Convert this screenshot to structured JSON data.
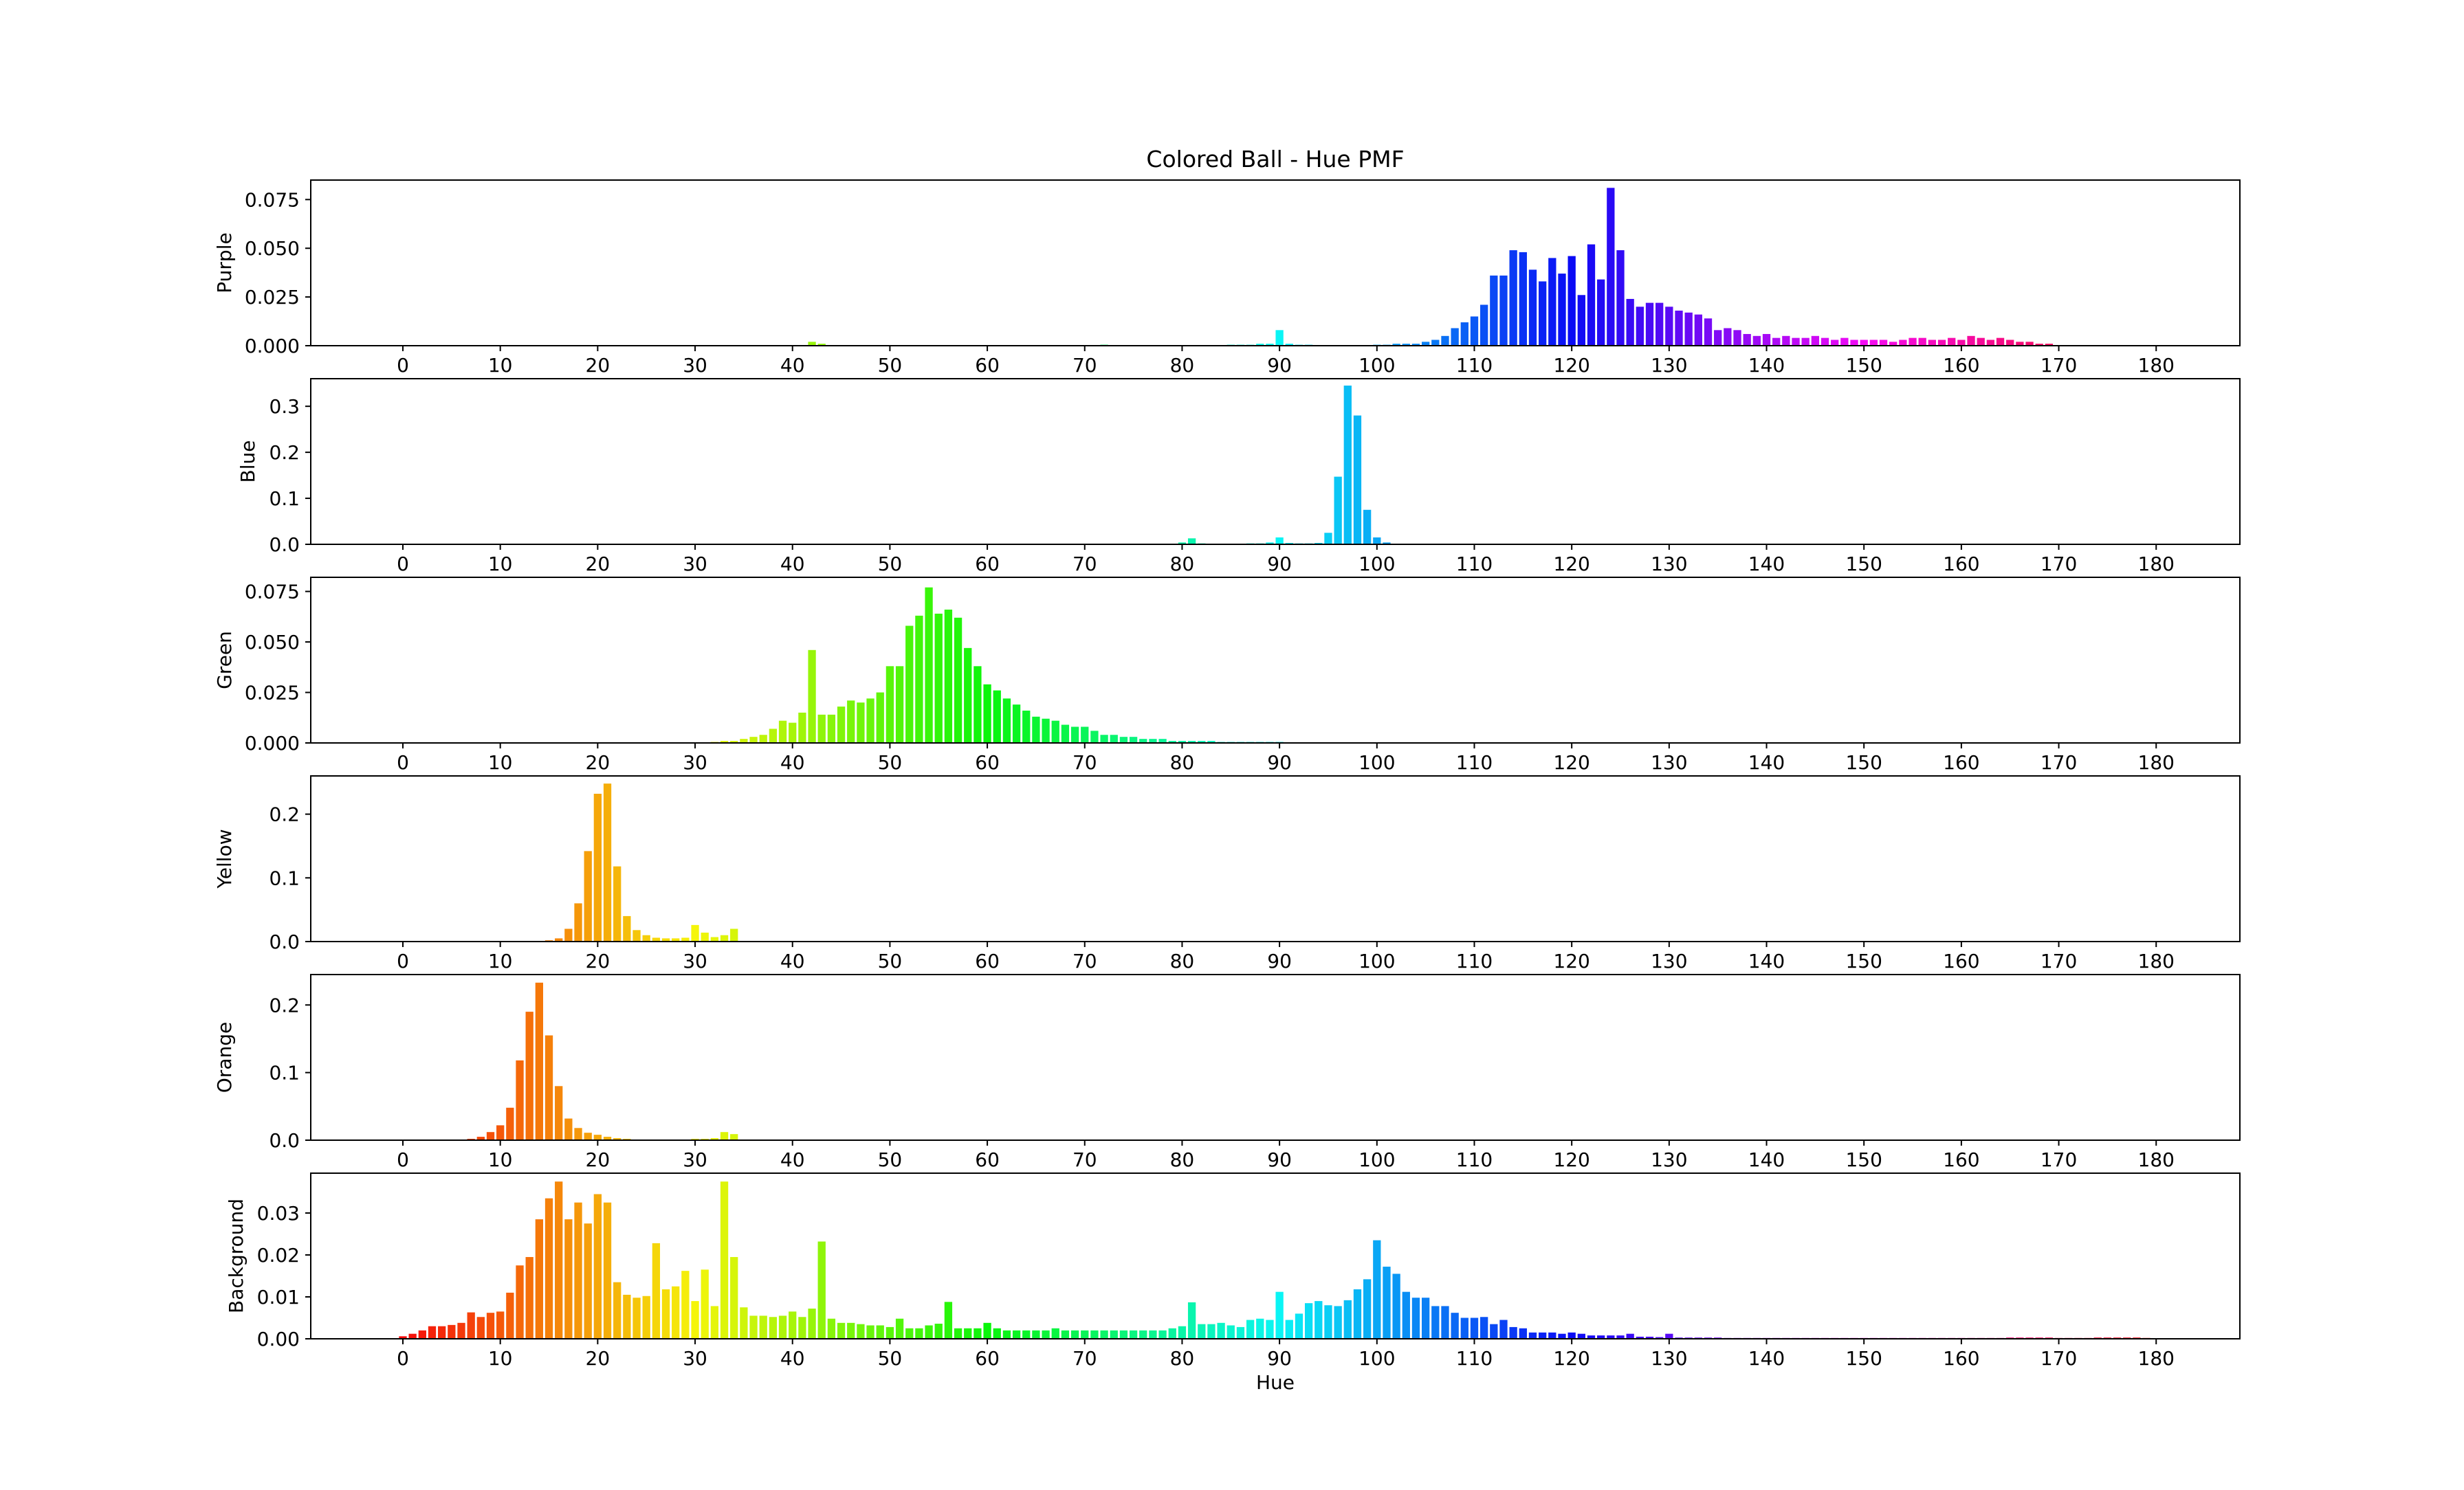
{
  "title": "Colored Ball - Hue PMF",
  "xlabel": "Hue",
  "x_ticks": [
    "0",
    "10",
    "20",
    "30",
    "40",
    "50",
    "60",
    "70",
    "80",
    "90",
    "100",
    "110",
    "120",
    "130",
    "140",
    "150",
    "160",
    "170",
    "180"
  ],
  "chart_data": {
    "type": "bar",
    "title": "Colored Ball - Hue PMF",
    "xlabel": "Hue",
    "x_range": [
      0,
      180
    ],
    "grid": false,
    "subplots": [
      {
        "name": "Purple",
        "ylabel": "Purple",
        "ylim": [
          0,
          0.085
        ],
        "yticks": [
          "0.000",
          "0.025",
          "0.050",
          "0.075"
        ],
        "ytick_values": [
          0,
          0.025,
          0.05,
          0.075
        ],
        "values": {
          "42": 0.002,
          "43": 0.001,
          "72": 0.0005,
          "85": 0.0005,
          "86": 0.0005,
          "87": 0.0005,
          "88": 0.001,
          "89": 0.001,
          "90": 0.008,
          "91": 0.001,
          "92": 0.0005,
          "93": 0.0005,
          "100": 0.0005,
          "101": 0.0005,
          "102": 0.001,
          "103": 0.001,
          "104": 0.001,
          "105": 0.002,
          "106": 0.003,
          "107": 0.005,
          "108": 0.009,
          "109": 0.012,
          "110": 0.015,
          "111": 0.021,
          "112": 0.036,
          "113": 0.036,
          "114": 0.049,
          "115": 0.048,
          "116": 0.039,
          "117": 0.033,
          "118": 0.045,
          "119": 0.037,
          "120": 0.046,
          "121": 0.026,
          "122": 0.052,
          "123": 0.034,
          "124": 0.081,
          "125": 0.049,
          "126": 0.024,
          "127": 0.02,
          "128": 0.022,
          "129": 0.022,
          "130": 0.02,
          "131": 0.018,
          "132": 0.017,
          "133": 0.016,
          "134": 0.014,
          "135": 0.008,
          "136": 0.009,
          "137": 0.008,
          "138": 0.006,
          "139": 0.005,
          "140": 0.006,
          "141": 0.004,
          "142": 0.005,
          "143": 0.004,
          "144": 0.004,
          "145": 0.005,
          "146": 0.004,
          "147": 0.003,
          "148": 0.004,
          "149": 0.003,
          "150": 0.003,
          "151": 0.003,
          "152": 0.003,
          "153": 0.002,
          "154": 0.003,
          "155": 0.004,
          "156": 0.004,
          "157": 0.003,
          "158": 0.003,
          "159": 0.004,
          "160": 0.003,
          "161": 0.005,
          "162": 0.004,
          "163": 0.003,
          "164": 0.004,
          "165": 0.003,
          "166": 0.002,
          "167": 0.002,
          "168": 0.001,
          "169": 0.001
        }
      },
      {
        "name": "Blue",
        "ylabel": "Blue",
        "ylim": [
          0,
          0.36
        ],
        "yticks": [
          "0.0",
          "0.1",
          "0.2",
          "0.3"
        ],
        "ytick_values": [
          0,
          0.1,
          0.2,
          0.3
        ],
        "values": {
          "80": 0.004,
          "81": 0.013,
          "82": 0.002,
          "83": 0.001,
          "84": 0.001,
          "86": 0.001,
          "87": 0.002,
          "88": 0.002,
          "89": 0.004,
          "90": 0.015,
          "91": 0.003,
          "92": 0.002,
          "93": 0.002,
          "94": 0.003,
          "95": 0.025,
          "96": 0.147,
          "97": 0.345,
          "98": 0.28,
          "99": 0.075,
          "100": 0.015,
          "101": 0.004,
          "102": 0.001
        }
      },
      {
        "name": "Green",
        "ylabel": "Green",
        "ylim": [
          0,
          0.082
        ],
        "yticks": [
          "0.000",
          "0.025",
          "0.050",
          "0.075"
        ],
        "ytick_values": [
          0,
          0.025,
          0.05,
          0.075
        ],
        "values": {
          "32": 0.0005,
          "33": 0.001,
          "34": 0.001,
          "35": 0.002,
          "36": 0.003,
          "37": 0.004,
          "38": 0.007,
          "39": 0.011,
          "40": 0.01,
          "41": 0.015,
          "42": 0.046,
          "43": 0.014,
          "44": 0.014,
          "45": 0.018,
          "46": 0.021,
          "47": 0.02,
          "48": 0.022,
          "49": 0.025,
          "50": 0.038,
          "51": 0.038,
          "52": 0.058,
          "53": 0.063,
          "54": 0.077,
          "55": 0.064,
          "56": 0.066,
          "57": 0.062,
          "58": 0.047,
          "59": 0.038,
          "60": 0.029,
          "61": 0.026,
          "62": 0.022,
          "63": 0.019,
          "64": 0.016,
          "65": 0.013,
          "66": 0.012,
          "67": 0.011,
          "68": 0.009,
          "69": 0.008,
          "70": 0.008,
          "71": 0.006,
          "72": 0.004,
          "73": 0.004,
          "74": 0.003,
          "75": 0.003,
          "76": 0.002,
          "77": 0.002,
          "78": 0.002,
          "79": 0.001,
          "80": 0.001,
          "81": 0.001,
          "82": 0.001,
          "83": 0.001,
          "84": 0.0005,
          "85": 0.0005,
          "86": 0.0005,
          "87": 0.0005,
          "88": 0.0005,
          "89": 0.0005,
          "90": 0.0005
        }
      },
      {
        "name": "Yellow",
        "ylabel": "Yellow",
        "ylim": [
          0,
          0.26
        ],
        "yticks": [
          "0.0",
          "0.1",
          "0.2"
        ],
        "ytick_values": [
          0,
          0.1,
          0.2
        ],
        "values": {
          "15": 0.002,
          "16": 0.005,
          "17": 0.02,
          "18": 0.06,
          "19": 0.142,
          "20": 0.232,
          "21": 0.248,
          "22": 0.118,
          "23": 0.04,
          "24": 0.018,
          "25": 0.01,
          "26": 0.006,
          "27": 0.005,
          "28": 0.005,
          "29": 0.006,
          "30": 0.026,
          "31": 0.014,
          "32": 0.007,
          "33": 0.01,
          "34": 0.02
        }
      },
      {
        "name": "Orange",
        "ylabel": "Orange",
        "ylim": [
          0,
          0.245
        ],
        "yticks": [
          "0.0",
          "0.1",
          "0.2"
        ],
        "ytick_values": [
          0,
          0.1,
          0.2
        ],
        "values": {
          "7": 0.002,
          "8": 0.005,
          "9": 0.012,
          "10": 0.022,
          "11": 0.048,
          "12": 0.118,
          "13": 0.19,
          "14": 0.233,
          "15": 0.155,
          "16": 0.08,
          "17": 0.032,
          "18": 0.018,
          "19": 0.011,
          "20": 0.008,
          "21": 0.005,
          "22": 0.003,
          "23": 0.002,
          "30": 0.002,
          "31": 0.002,
          "32": 0.003,
          "33": 0.012,
          "34": 0.009
        }
      },
      {
        "name": "Background",
        "ylabel": "Background",
        "ylim": [
          0,
          0.0395
        ],
        "yticks": [
          "0.00",
          "0.01",
          "0.02",
          "0.03"
        ],
        "ytick_values": [
          0,
          0.01,
          0.02,
          0.03
        ],
        "values": {
          "0": 0.0006,
          "1": 0.0012,
          "2": 0.002,
          "3": 0.003,
          "4": 0.003,
          "5": 0.0033,
          "6": 0.0038,
          "7": 0.0063,
          "8": 0.0052,
          "9": 0.0062,
          "10": 0.0065,
          "11": 0.011,
          "12": 0.0175,
          "13": 0.0195,
          "14": 0.0285,
          "15": 0.0335,
          "16": 0.0375,
          "17": 0.0285,
          "18": 0.0325,
          "19": 0.0275,
          "20": 0.0345,
          "21": 0.0325,
          "22": 0.0135,
          "23": 0.0105,
          "24": 0.0098,
          "25": 0.0102,
          "26": 0.0228,
          "27": 0.0118,
          "28": 0.0125,
          "29": 0.0162,
          "30": 0.009,
          "31": 0.0165,
          "32": 0.0078,
          "33": 0.0375,
          "34": 0.0195,
          "35": 0.0075,
          "36": 0.0055,
          "37": 0.0055,
          "38": 0.0052,
          "39": 0.0055,
          "40": 0.0065,
          "41": 0.0052,
          "42": 0.0072,
          "43": 0.0232,
          "44": 0.0048,
          "45": 0.0038,
          "46": 0.0038,
          "47": 0.0035,
          "48": 0.0032,
          "49": 0.0032,
          "50": 0.0028,
          "51": 0.0048,
          "52": 0.0025,
          "53": 0.0025,
          "54": 0.0032,
          "55": 0.0036,
          "56": 0.0088,
          "57": 0.0025,
          "58": 0.0025,
          "59": 0.0025,
          "60": 0.0038,
          "61": 0.0025,
          "62": 0.002,
          "63": 0.002,
          "64": 0.002,
          "65": 0.002,
          "66": 0.002,
          "67": 0.0025,
          "68": 0.002,
          "69": 0.002,
          "70": 0.002,
          "71": 0.002,
          "72": 0.002,
          "73": 0.002,
          "74": 0.002,
          "75": 0.002,
          "76": 0.002,
          "77": 0.002,
          "78": 0.002,
          "79": 0.0025,
          "80": 0.003,
          "81": 0.0087,
          "82": 0.0035,
          "83": 0.0035,
          "84": 0.0038,
          "85": 0.0032,
          "86": 0.0028,
          "87": 0.0045,
          "88": 0.0048,
          "89": 0.0045,
          "90": 0.0112,
          "91": 0.0045,
          "92": 0.006,
          "93": 0.0085,
          "94": 0.009,
          "95": 0.008,
          "96": 0.0078,
          "97": 0.0092,
          "98": 0.0118,
          "99": 0.0142,
          "100": 0.0235,
          "101": 0.0172,
          "102": 0.0155,
          "103": 0.0112,
          "104": 0.0098,
          "105": 0.0098,
          "106": 0.0078,
          "107": 0.0078,
          "108": 0.0062,
          "109": 0.005,
          "110": 0.005,
          "111": 0.0052,
          "112": 0.0035,
          "113": 0.0045,
          "114": 0.0028,
          "115": 0.0025,
          "116": 0.0015,
          "117": 0.0015,
          "118": 0.0015,
          "119": 0.0012,
          "120": 0.0015,
          "121": 0.0012,
          "122": 0.0008,
          "123": 0.0008,
          "124": 0.0008,
          "125": 0.0008,
          "126": 0.0012,
          "127": 0.0005,
          "128": 0.0005,
          "129": 0.0004,
          "130": 0.0012,
          "131": 0.0003,
          "132": 0.0003,
          "133": 0.0003,
          "134": 0.0003,
          "135": 0.0003,
          "136": 0.0002,
          "137": 0.0002,
          "138": 0.0002,
          "139": 0.0002,
          "140": 0.0002,
          "141": 0.0002,
          "142": 0.0002,
          "143": 0.0002,
          "144": 0.0002,
          "145": 0.0002,
          "146": 0.0002,
          "147": 0.0002,
          "148": 0.0002,
          "149": 0.0002,
          "150": 0.0002,
          "151": 0.0002,
          "152": 0.0002,
          "153": 0.0002,
          "154": 0.0002,
          "155": 0.0002,
          "156": 0.0002,
          "157": 0.0002,
          "158": 0.0002,
          "159": 0.0002,
          "160": 0.0002,
          "161": 0.0002,
          "162": 0.0002,
          "163": 0.0002,
          "164": 0.0002,
          "165": 0.0003,
          "166": 0.0003,
          "167": 0.0003,
          "168": 0.0003,
          "169": 0.0003,
          "170": 0.0002,
          "171": 0.0002,
          "172": 0.0002,
          "173": 0.0002,
          "174": 0.0003,
          "175": 0.0003,
          "176": 0.0003,
          "177": 0.0003,
          "178": 0.0003,
          "179": 0.0002
        }
      }
    ]
  }
}
